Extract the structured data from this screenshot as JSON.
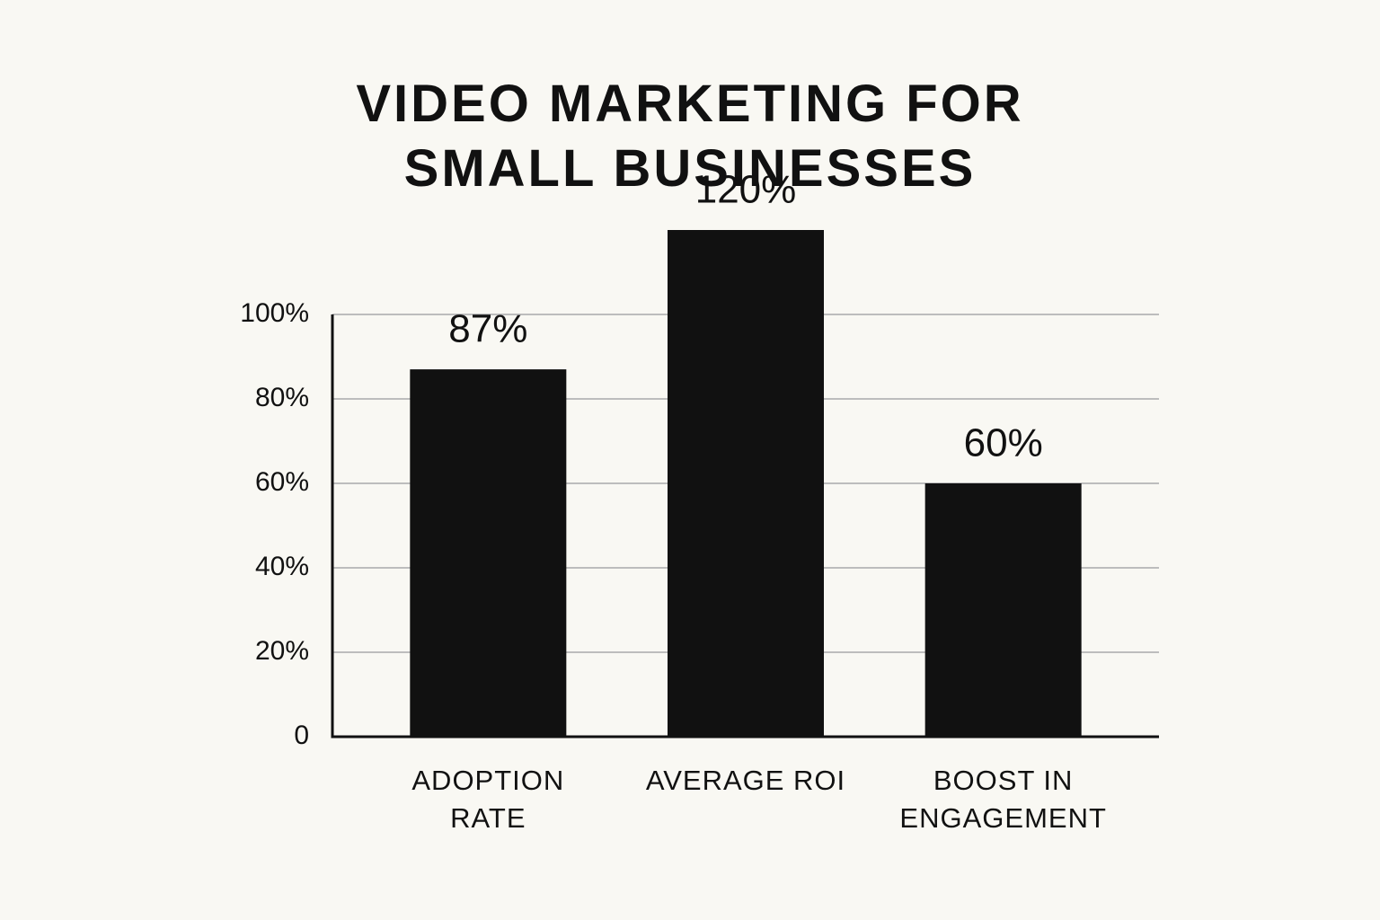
{
  "chart_data": {
    "type": "bar",
    "title": "VIDEO MARKETING FOR SMALL BUSINESSES",
    "categories": [
      "ADOPTION RATE",
      "AVERAGE ROI",
      "BOOST IN ENGAGEMENT"
    ],
    "values": [
      87,
      120,
      60
    ],
    "value_labels": [
      "87%",
      "120%",
      "60%"
    ],
    "color": "#111111",
    "ylim": [
      0,
      100
    ],
    "yticks": [
      0,
      {
        "value": 20,
        "label": "20%"
      },
      {
        "value": 40,
        "label": "40%"
      },
      {
        "value": 60,
        "label": "60%"
      },
      {
        "value": 80,
        "label": "80%"
      },
      {
        "value": 100,
        "label": "100%"
      }
    ],
    "grid": true
  }
}
